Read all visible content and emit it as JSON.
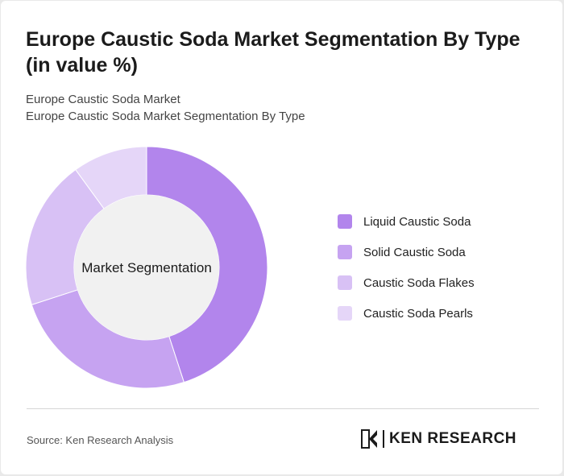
{
  "header": {
    "title": "Europe Caustic Soda Market Segmentation By Type (in value %)",
    "subtitle_1": "Europe Caustic Soda Market",
    "subtitle_2": "Europe Caustic Soda Market Segmentation By Type"
  },
  "chart_data": {
    "type": "pie",
    "variant": "donut",
    "center_label": "Market Segmentation",
    "categories": [
      "Liquid Caustic Soda",
      "Solid Caustic Soda",
      "Caustic Soda Flakes",
      "Caustic Soda Pearls"
    ],
    "values": [
      45,
      25,
      20,
      10
    ],
    "colors": [
      "#b285ec",
      "#c6a3f1",
      "#d8c1f5",
      "#e5d6f8"
    ],
    "legend_position": "right"
  },
  "footer": {
    "source": "Source: Ken Research Analysis",
    "brand": "KEN RESEARCH"
  }
}
